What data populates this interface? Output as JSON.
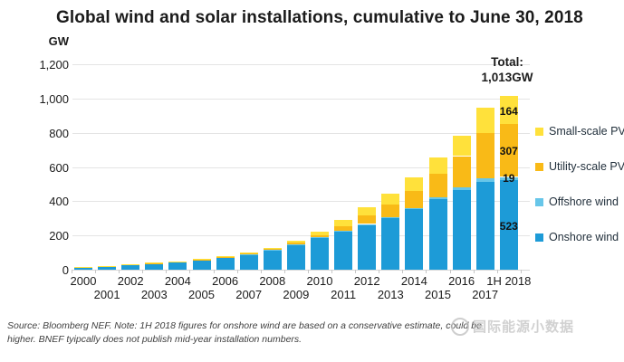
{
  "header": {
    "title": "Global wind and solar installations, cumulative to June 30, 2018"
  },
  "chart_data": {
    "type": "bar",
    "subtype": "stacked",
    "title": "Global wind and solar installations, cumulative to June 30, 2018",
    "unit_label": "GW",
    "ylim": [
      0,
      1200
    ],
    "grid": true,
    "y_ticks": [
      {
        "value": 0,
        "label": "0"
      },
      {
        "value": 200,
        "label": "200"
      },
      {
        "value": 400,
        "label": "400"
      },
      {
        "value": 600,
        "label": "600"
      },
      {
        "value": 800,
        "label": "800"
      },
      {
        "value": 1000,
        "label": "1,000"
      },
      {
        "value": 1200,
        "label": "1,200"
      }
    ],
    "categories": [
      "2000",
      "2001",
      "2002",
      "2003",
      "2004",
      "2005",
      "2006",
      "2007",
      "2008",
      "2009",
      "2010",
      "2011",
      "2012",
      "2013",
      "2014",
      "2015",
      "2016",
      "2017",
      "1H 2018"
    ],
    "series": [
      {
        "name": "Onshore wind",
        "color": "#1D9BD7",
        "end_label": "523",
        "values": [
          16,
          22,
          29,
          37,
          45,
          57,
          71,
          90,
          115,
          148,
          186,
          222,
          262,
          300,
          352,
          412,
          465,
          515,
          523
        ]
      },
      {
        "name": "Offshore wind",
        "color": "#67C6E9",
        "end_label": "19",
        "values": [
          0,
          0,
          0,
          1,
          1,
          1,
          1,
          1,
          2,
          2,
          3,
          4,
          5,
          7,
          9,
          12,
          14,
          18,
          19
        ]
      },
      {
        "name": "Utility-scale PV",
        "color": "#F9BA17",
        "end_label": "307",
        "values": [
          0,
          0,
          1,
          1,
          1,
          1,
          2,
          3,
          4,
          8,
          14,
          29,
          49,
          74,
          100,
          137,
          184,
          266,
          307
        ]
      },
      {
        "name": "Small-scale PV",
        "color": "#FFE13B",
        "end_label": "164",
        "values": [
          1,
          1,
          1,
          2,
          2,
          3,
          4,
          5,
          8,
          12,
          21,
          34,
          47,
          62,
          80,
          95,
          117,
          146,
          164
        ]
      }
    ],
    "total_annotation": {
      "line1": "Total:",
      "line2": "1,013GW"
    },
    "legend_position": "right"
  },
  "legend": {
    "items": [
      {
        "label": "Small-scale PV",
        "color": "#FFE13B"
      },
      {
        "label": "Utility-scale PV",
        "color": "#F9BA17"
      },
      {
        "label": "Offshore wind",
        "color": "#67C6E9"
      },
      {
        "label": "Onshore wind",
        "color": "#1D9BD7"
      }
    ]
  },
  "footnote": {
    "line1": "Source: Bloomberg NEF. Note: 1H 2018 figures for onshore wind are based on a conservative estimate, could be",
    "line2": "higher. BNEF tyipcally does not publish mid-year installation numbers."
  },
  "watermark": {
    "text": "国际能源小数据"
  }
}
